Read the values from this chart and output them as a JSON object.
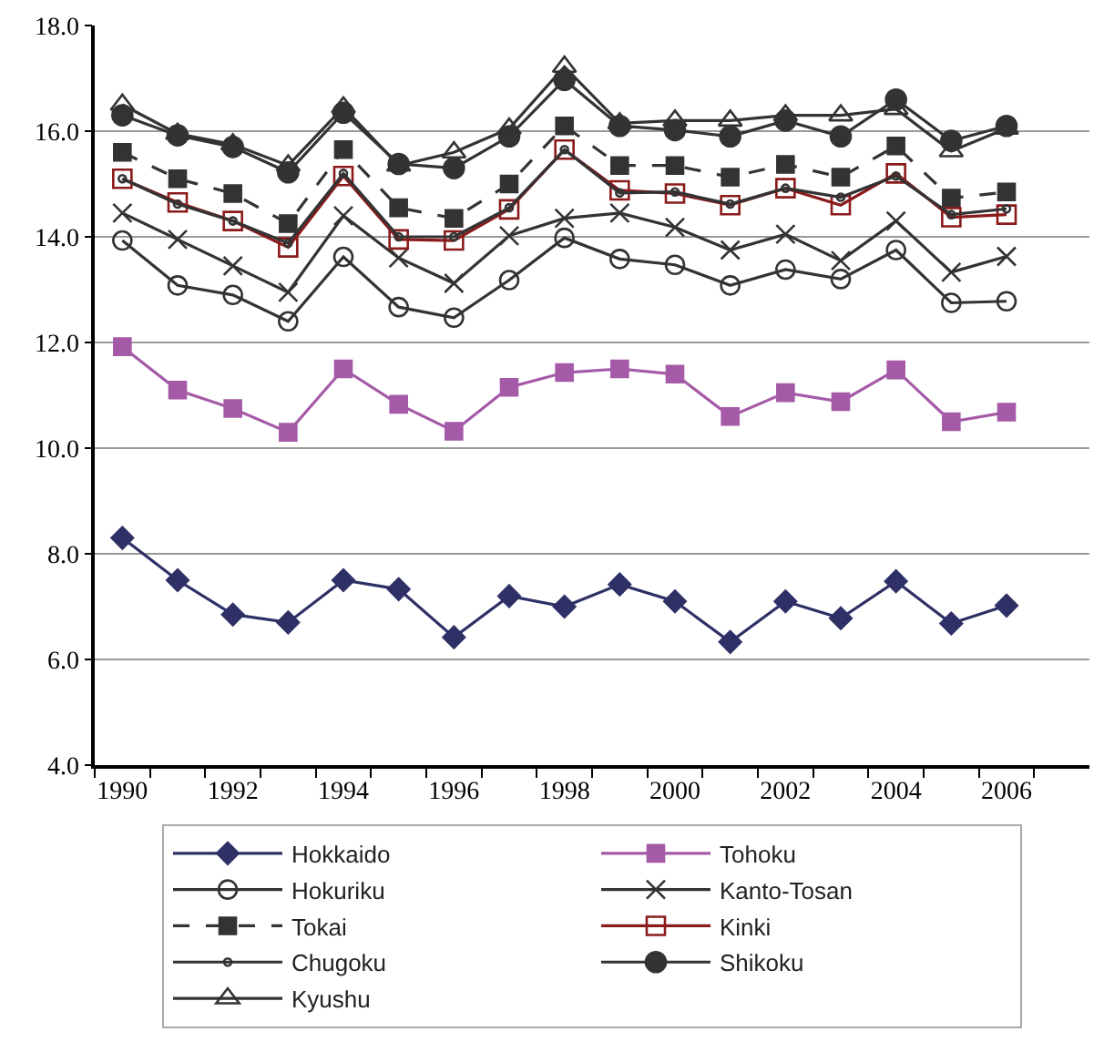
{
  "chart_data": {
    "type": "line",
    "categories": [
      "1990",
      null,
      "1992",
      null,
      "1994",
      null,
      "1996",
      null,
      "1998",
      null,
      "2000",
      null,
      "2002",
      null,
      "2004",
      null,
      "2006"
    ],
    "ylim": [
      4,
      18
    ],
    "yticks": [
      {
        "value": 4,
        "label": "4.0"
      },
      {
        "value": 6,
        "label": "6.0"
      },
      {
        "value": 8,
        "label": "8.0"
      },
      {
        "value": 10,
        "label": "10.0"
      },
      {
        "value": 12,
        "label": "12.0"
      },
      {
        "value": 14,
        "label": "14.0"
      },
      {
        "value": 16,
        "label": "16.0"
      },
      {
        "value": 18,
        "label": "18.0"
      }
    ],
    "grid": "y",
    "legend": "bottom",
    "line_style": "solid",
    "series": [
      {
        "name": "Hokkaido",
        "color": "#2e3066",
        "marker": "diamond",
        "values": [
          8.3,
          7.5,
          6.85,
          6.7,
          7.5,
          7.33,
          6.42,
          7.2,
          7.0,
          7.42,
          7.1,
          6.33,
          7.1,
          6.78,
          7.48,
          6.68,
          7.02
        ]
      },
      {
        "name": "Tohoku",
        "color": "#a55aa8",
        "marker": "square",
        "values": [
          11.92,
          11.1,
          10.75,
          10.3,
          11.5,
          10.83,
          10.32,
          11.15,
          11.43,
          11.5,
          11.4,
          10.6,
          11.05,
          10.88,
          11.48,
          10.5,
          10.68
        ]
      },
      {
        "name": "Hokuriku",
        "color": "#333333",
        "marker": "circle-open",
        "values": [
          13.93,
          13.08,
          12.9,
          12.4,
          13.62,
          12.67,
          12.47,
          13.18,
          13.98,
          13.58,
          13.47,
          13.08,
          13.38,
          13.2,
          13.75,
          12.75,
          12.78
        ]
      },
      {
        "name": "Kanto-Tosan",
        "color": "#333333",
        "marker": "cross",
        "values": [
          14.45,
          13.95,
          13.45,
          12.95,
          14.4,
          13.6,
          13.12,
          14.02,
          14.35,
          14.45,
          14.18,
          13.75,
          14.05,
          13.55,
          14.3,
          13.33,
          13.63
        ]
      },
      {
        "name": "Tokai",
        "color": "#333333",
        "marker": "square",
        "line_style": "dashed",
        "values": [
          15.6,
          15.1,
          14.82,
          14.25,
          15.65,
          14.55,
          14.35,
          15.0,
          16.1,
          15.35,
          15.35,
          15.13,
          15.37,
          15.13,
          15.72,
          14.73,
          14.85
        ]
      },
      {
        "name": "Kinki",
        "color": "#8b1a1a",
        "marker": "square-open",
        "values": [
          15.1,
          14.65,
          14.3,
          13.8,
          15.15,
          13.95,
          13.93,
          14.52,
          15.65,
          14.88,
          14.82,
          14.6,
          14.92,
          14.6,
          15.2,
          14.37,
          14.42
        ]
      },
      {
        "name": "Chugoku",
        "color": "#333333",
        "marker": "small-circle-open",
        "values": [
          15.1,
          14.62,
          14.3,
          13.88,
          15.2,
          14.0,
          14.0,
          14.55,
          15.65,
          14.83,
          14.85,
          14.62,
          14.92,
          14.75,
          15.15,
          14.42,
          14.53
        ]
      },
      {
        "name": "Shikoku",
        "color": "#333333",
        "marker": "circle",
        "values": [
          16.3,
          15.92,
          15.7,
          15.22,
          16.35,
          15.38,
          15.3,
          15.9,
          16.97,
          16.1,
          16.02,
          15.9,
          16.2,
          15.9,
          16.6,
          15.82,
          16.1
        ]
      },
      {
        "name": "Kyushu",
        "color": "#333333",
        "marker": "triangle-open",
        "values": [
          16.5,
          15.95,
          15.75,
          15.35,
          16.45,
          15.35,
          15.6,
          16.05,
          17.22,
          16.15,
          16.2,
          16.2,
          16.3,
          16.3,
          16.42,
          15.62,
          16.05
        ]
      }
    ]
  }
}
